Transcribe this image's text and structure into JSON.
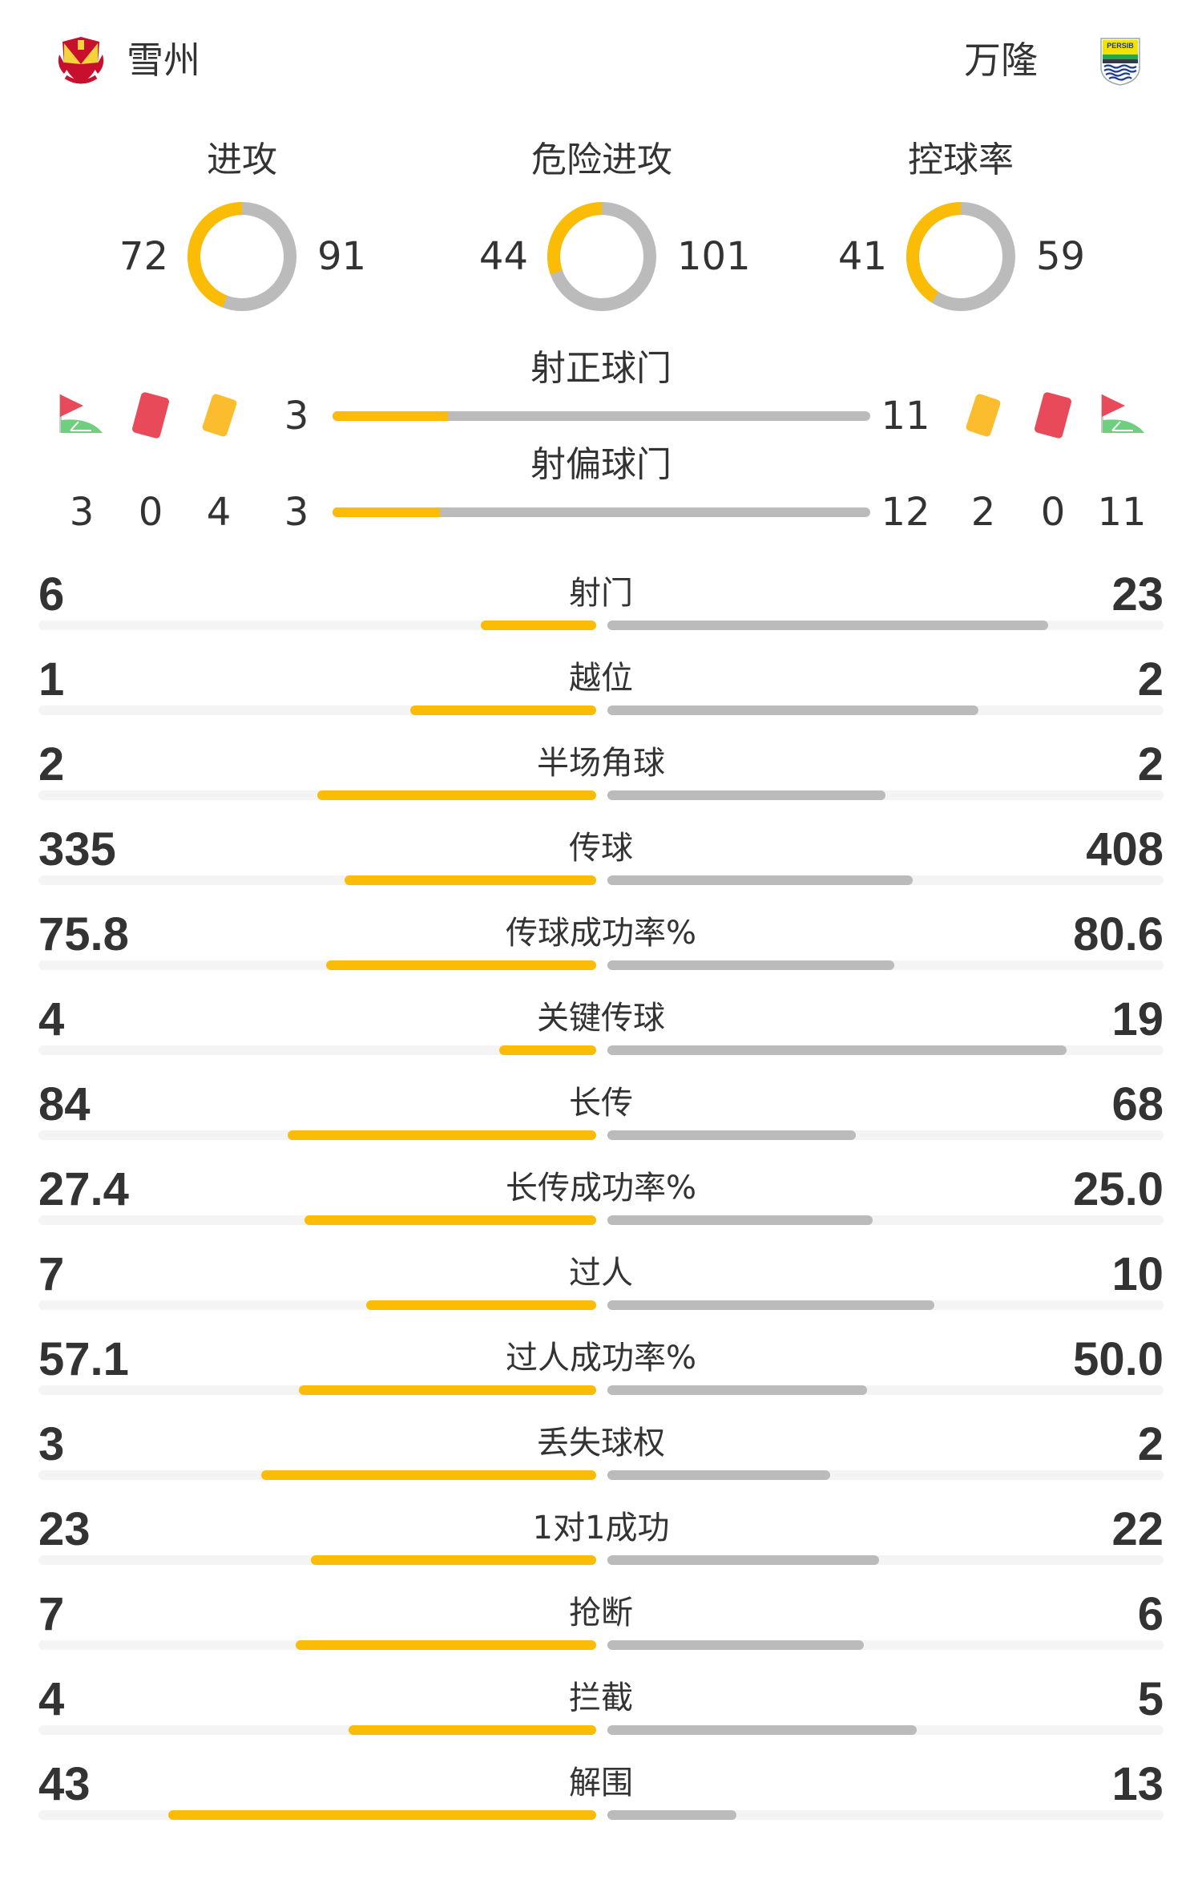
{
  "colors": {
    "home": "#fbbc05",
    "away": "#bbbbbb",
    "track": "#f4f4f4",
    "red_card": "#e84a5a",
    "yellow_card": "#fbbc2d",
    "corner_flag": "#6fcf7f"
  },
  "home": {
    "name": "雪州",
    "logo": "selangor-crest"
  },
  "away": {
    "name": "万隆",
    "logo": "persib-crest",
    "logo_text": "PERSIB"
  },
  "donuts": [
    {
      "title": "进攻",
      "home": 72,
      "away": 91
    },
    {
      "title": "危险进攻",
      "home": 44,
      "away": 101
    },
    {
      "title": "控球率",
      "home": 41,
      "away": 59
    }
  ],
  "shots_on_target": {
    "label": "射正球门",
    "home": 3,
    "away": 11
  },
  "shots_off_target": {
    "label": "射偏球门",
    "home": 3,
    "away": 12
  },
  "icons": [
    "corner-flag-icon",
    "red-card-icon",
    "yellow-card-icon"
  ],
  "home_counts": {
    "corners": 3,
    "red_cards": 0,
    "yellow_cards": 4
  },
  "away_counts": {
    "yellow_cards": 2,
    "red_cards": 0,
    "corners": 11
  },
  "stats": [
    {
      "label": "射门",
      "home": "6",
      "away": "23"
    },
    {
      "label": "越位",
      "home": "1",
      "away": "2"
    },
    {
      "label": "半场角球",
      "home": "2",
      "away": "2"
    },
    {
      "label": "传球",
      "home": "335",
      "away": "408"
    },
    {
      "label": "传球成功率%",
      "home": "75.8",
      "away": "80.6"
    },
    {
      "label": "关键传球",
      "home": "4",
      "away": "19"
    },
    {
      "label": "长传",
      "home": "84",
      "away": "68"
    },
    {
      "label": "长传成功率%",
      "home": "27.4",
      "away": "25.0"
    },
    {
      "label": "过人",
      "home": "7",
      "away": "10"
    },
    {
      "label": "过人成功率%",
      "home": "57.1",
      "away": "50.0"
    },
    {
      "label": "丢失球权",
      "home": "3",
      "away": "2"
    },
    {
      "label": "1对1成功",
      "home": "23",
      "away": "22"
    },
    {
      "label": "抢断",
      "home": "7",
      "away": "6"
    },
    {
      "label": "拦截",
      "home": "4",
      "away": "5"
    },
    {
      "label": "解围",
      "home": "43",
      "away": "13"
    }
  ]
}
